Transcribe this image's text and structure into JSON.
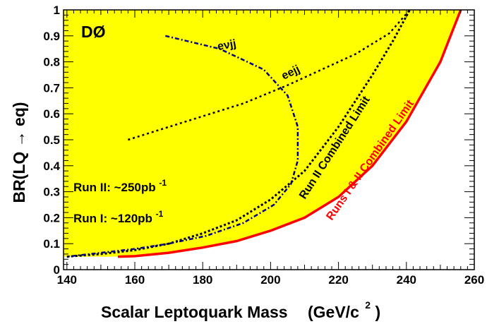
{
  "chart_data": {
    "type": "line",
    "experiment_label": "DØ",
    "xlabel": "Scalar Leptoquark Mass",
    "xunit": "(GeV/c",
    "xunit_sup": "2",
    "xunit_close": ")",
    "ylabel": "BR(LQ → eq)",
    "xlim": [
      139,
      260
    ],
    "ylim": [
      0,
      1
    ],
    "x_ticks": [
      "140",
      "160",
      "180",
      "200",
      "220",
      "240",
      "260"
    ],
    "y_ticks": [
      "0",
      "0.1",
      "0.2",
      "0.3",
      "0.4",
      "0.5",
      "0.6",
      "0.7",
      "0.8",
      "0.9",
      "1"
    ],
    "annotations": {
      "run2_lumi": "Run II: ~250pb",
      "run2_lumi_sup": "-1",
      "run1_lumi": "Run I: ~120pb",
      "run1_lumi_sup": "-1",
      "enujj": "eνjj",
      "eejj": "eejj",
      "run2_combined": "Run II Combined Limit",
      "runs12_combined": "Runs I & II Combined Limit"
    },
    "colors": {
      "excluded_fill": "#ffff00",
      "runs12_line": "#ff0000",
      "enujj_line": "#000080",
      "eejj_line": "#000000",
      "run2_line": "#000000"
    },
    "series": [
      {
        "name": "Runs I & II Combined Limit",
        "x": [
          155,
          160,
          170,
          180,
          190,
          200,
          210,
          220,
          230,
          240,
          250,
          256
        ],
        "y": [
          0.05,
          0.052,
          0.065,
          0.085,
          0.11,
          0.15,
          0.2,
          0.28,
          0.4,
          0.57,
          0.8,
          1.0
        ]
      },
      {
        "name": "Run II Combined Limit",
        "x": [
          140,
          150,
          160,
          170,
          180,
          190,
          200,
          210,
          220,
          230,
          236,
          241
        ],
        "y": [
          0.05,
          0.06,
          0.075,
          0.1,
          0.14,
          0.19,
          0.27,
          0.38,
          0.55,
          0.75,
          0.88,
          1.0
        ]
      },
      {
        "name": "eνjj",
        "x": [
          169,
          185,
          198,
          205,
          208,
          208,
          206,
          201,
          192,
          181,
          170,
          160,
          150,
          140
        ],
        "y": [
          0.9,
          0.85,
          0.77,
          0.67,
          0.55,
          0.42,
          0.33,
          0.25,
          0.18,
          0.13,
          0.1,
          0.08,
          0.065,
          0.05
        ]
      },
      {
        "name": "eejj",
        "x": [
          158,
          175,
          192,
          205,
          215,
          225,
          235,
          241
        ],
        "y": [
          0.5,
          0.57,
          0.64,
          0.71,
          0.77,
          0.83,
          0.91,
          1.0
        ]
      }
    ]
  }
}
